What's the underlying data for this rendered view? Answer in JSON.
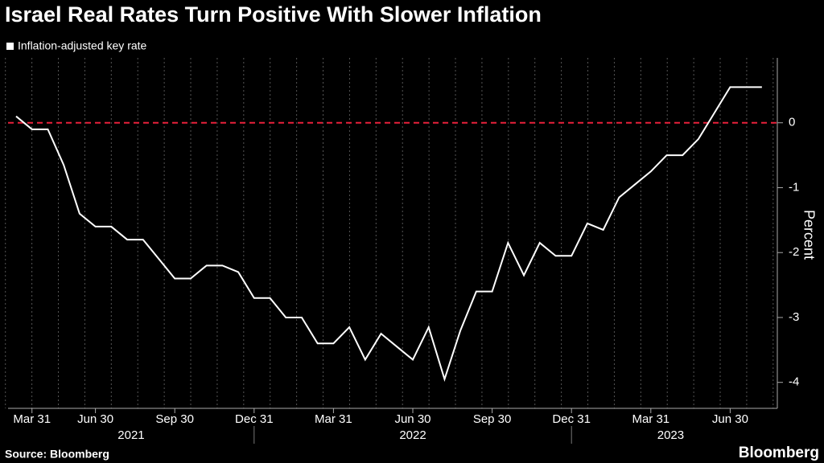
{
  "chart_data": {
    "type": "line",
    "title": "Israel Real Rates Turn Positive With Slower Inflation",
    "source": "Source: Bloomberg",
    "brand": "Bloomberg",
    "y_label": "Percent",
    "categories": [
      null,
      "Mar 31",
      null,
      null,
      null,
      "Jun 30",
      null,
      null,
      null,
      null,
      "Sep 30",
      null,
      null,
      null,
      null,
      "Dec 31",
      null,
      null,
      null,
      null,
      "Mar 31",
      null,
      null,
      null,
      null,
      "Jun 30",
      null,
      null,
      null,
      null,
      "Sep 30",
      null,
      null,
      null,
      null,
      "Dec 31",
      null,
      null,
      null,
      null,
      "Mar 31",
      null,
      null,
      null,
      null,
      "Jun 30",
      null,
      null
    ],
    "year_labels": [
      "2021",
      "2022",
      "2023"
    ],
    "series": [
      {
        "name": "Inflation-adjusted key rate",
        "color": "#ffffff",
        "values": [
          0.1,
          -0.1,
          -0.1,
          -0.65,
          -1.4,
          -1.6,
          -1.6,
          -1.8,
          -1.8,
          -2.1,
          -2.4,
          -2.4,
          -2.2,
          -2.2,
          -2.3,
          -2.7,
          -2.7,
          -3.0,
          -3.0,
          -3.4,
          -3.4,
          -3.15,
          -3.65,
          -3.25,
          -3.45,
          -3.65,
          -3.15,
          -3.95,
          -3.2,
          -2.6,
          -2.6,
          -1.85,
          -2.35,
          -1.85,
          -2.05,
          -2.05,
          -1.55,
          -1.65,
          -1.15,
          -0.95,
          -0.75,
          -0.5,
          -0.5,
          -0.25,
          0.15,
          0.55,
          0.55,
          0.55
        ]
      }
    ],
    "reference_line": {
      "value": 0,
      "color": "#e8203a"
    },
    "ylim": [
      -4.4,
      1
    ],
    "yticks": [
      0,
      -1,
      -2,
      -3,
      -4
    ],
    "grid": true
  }
}
